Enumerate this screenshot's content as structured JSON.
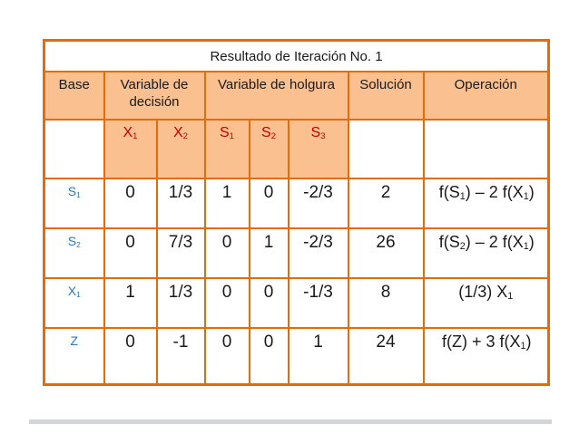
{
  "colors": {
    "page_bg": "#FFFFFF",
    "table_fill": "#FAC090",
    "table_border": "#E36C0A",
    "subheader_text": "#C00000",
    "base_text": "#2E75B6",
    "body_text": "#1A1A1A",
    "divider": "#D3D5D8"
  },
  "table": {
    "title": "Resultado de Iteración No. 1",
    "headers": {
      "base": "Base",
      "decision": "Variable de decisión",
      "holgura": "Variable de holgura",
      "solucion": "Solución",
      "operacion": "Operación"
    },
    "subheaders": [
      "X₁",
      "X₂",
      "S₁",
      "S₂",
      "S₃"
    ],
    "rows": [
      {
        "base": "S₁",
        "x1": "0",
        "x2": "1/3",
        "s1": "1",
        "s2": "0",
        "s3": "-2/3",
        "solucion": "2",
        "operacion": "f(S₁) – 2 f(X₁)"
      },
      {
        "base": "S₂",
        "x1": "0",
        "x2": "7/3",
        "s1": "0",
        "s2": "1",
        "s3": "-2/3",
        "solucion": "26",
        "operacion": "f(S₂) – 2 f(X₁)"
      },
      {
        "base": "X₁",
        "x1": "1",
        "x2": "1/3",
        "s1": "0",
        "s2": "0",
        "s3": "-1/3",
        "solucion": "8",
        "operacion": "(1/3) X₁"
      },
      {
        "base": "Z",
        "x1": "0",
        "x2": "-1",
        "s1": "0",
        "s2": "0",
        "s3": "1",
        "solucion": "24",
        "operacion": "f(Z) + 3 f(X₁)"
      }
    ]
  }
}
